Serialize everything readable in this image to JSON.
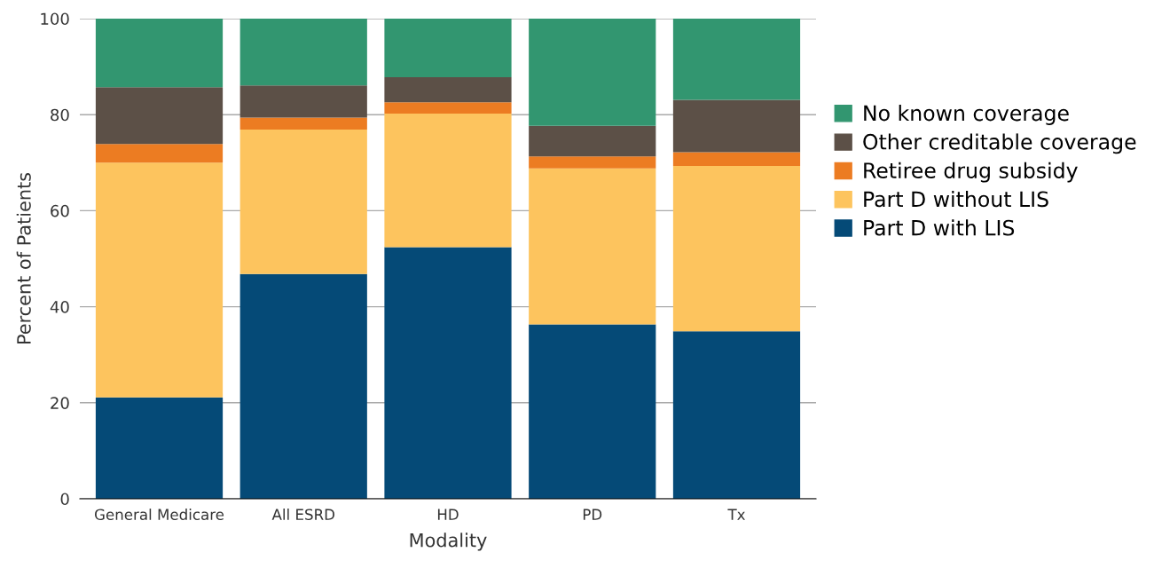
{
  "chart_data": {
    "type": "bar",
    "stacked": true,
    "xlabel": "Modality",
    "ylabel": "Percent of Patients",
    "categories": [
      "General Medicare",
      "All ESRD",
      "HD",
      "PD",
      "Tx"
    ],
    "series": [
      {
        "name": "Part D with LIS",
        "color": "#054a77",
        "values": [
          21.1,
          46.8,
          52.4,
          36.3,
          34.9
        ]
      },
      {
        "name": "Part D without LIS",
        "color": "#fdc45e",
        "values": [
          48.9,
          30.1,
          27.8,
          32.5,
          34.4
        ]
      },
      {
        "name": "Retiree drug subsidy",
        "color": "#ec7c22",
        "values": [
          3.9,
          2.5,
          2.4,
          2.5,
          2.9
        ]
      },
      {
        "name": "Other creditable coverage",
        "color": "#5c5047",
        "values": [
          11.8,
          6.7,
          5.2,
          6.4,
          10.9
        ]
      },
      {
        "name": "No known coverage",
        "color": "#329670",
        "values": [
          14.3,
          13.9,
          12.2,
          22.3,
          16.9
        ]
      }
    ],
    "ylim": [
      0,
      100
    ],
    "yticks": [
      0,
      20,
      40,
      60,
      80,
      100
    ],
    "grid": "y",
    "legend": "right"
  }
}
